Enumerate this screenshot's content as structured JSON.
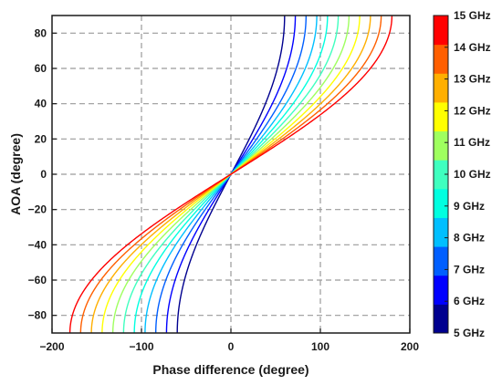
{
  "chart_data": {
    "type": "line",
    "xlabel": "Phase difference (degree)",
    "ylabel": "AOA (degree)",
    "xlim": [
      -200,
      200
    ],
    "ylim": [
      -90,
      90
    ],
    "xticks": [
      -200,
      -100,
      0,
      100,
      200
    ],
    "xtick_labels": [
      "−200",
      "−100",
      "0",
      "100",
      "200"
    ],
    "yticks": [
      -80,
      -60,
      -40,
      -20,
      0,
      20,
      40,
      60,
      80
    ],
    "ytick_labels": [
      "−80",
      "−60",
      "−40",
      "−20",
      "0",
      "20",
      "40",
      "60",
      "80"
    ],
    "grid": true,
    "legend": "colorbar-right",
    "series": [
      {
        "name": "5 GHz",
        "color": "#00008f",
        "phase_at_90deg": 60
      },
      {
        "name": "6 GHz",
        "color": "#0000ff",
        "phase_at_90deg": 72
      },
      {
        "name": "7 GHz",
        "color": "#005fff",
        "phase_at_90deg": 84
      },
      {
        "name": "8 GHz",
        "color": "#00bfff",
        "phase_at_90deg": 96
      },
      {
        "name": "9 GHz",
        "color": "#00ffe0",
        "phase_at_90deg": 108
      },
      {
        "name": "10 GHz",
        "color": "#3fffbf",
        "phase_at_90deg": 120
      },
      {
        "name": "11 GHz",
        "color": "#9fff5f",
        "phase_at_90deg": 132
      },
      {
        "name": "12 GHz",
        "color": "#ffff00",
        "phase_at_90deg": 144
      },
      {
        "name": "13 GHz",
        "color": "#ffaf00",
        "phase_at_90deg": 156
      },
      {
        "name": "14 GHz",
        "color": "#ff5f00",
        "phase_at_90deg": 168
      },
      {
        "name": "15 GHz",
        "color": "#ff0000",
        "phase_at_90deg": 180
      }
    ]
  }
}
